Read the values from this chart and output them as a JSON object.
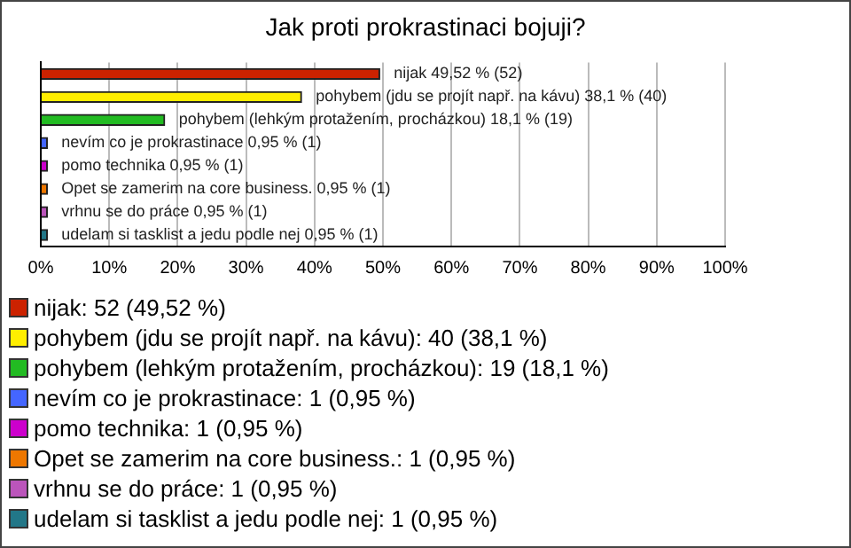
{
  "chart_data": {
    "type": "bar",
    "orientation": "horizontal",
    "title": "Jak proti prokrastinaci bojuji?",
    "categories": [
      null,
      null,
      null,
      null,
      null,
      null,
      null,
      null
    ],
    "series": [
      {
        "name": "nijak: 52 (49,52 %)",
        "color": "#cc2200",
        "values": [
          49.52,
          null,
          null,
          null,
          null,
          null,
          null,
          null
        ],
        "value_labels": [
          "nijak 49,52 % (52)",
          null,
          null,
          null,
          null,
          null,
          null,
          null
        ]
      },
      {
        "name": "pohybem (jdu se projít např. na kávu): 40 (38,1 %)",
        "color": "#ffee00",
        "values": [
          null,
          38.1,
          null,
          null,
          null,
          null,
          null,
          null
        ],
        "value_labels": [
          null,
          "pohybem (jdu se projít např. na kávu) 38,1 % (40)",
          null,
          null,
          null,
          null,
          null,
          null
        ]
      },
      {
        "name": "pohybem (lehkým protažením, procházkou): 19 (18,1 %)",
        "color": "#22bb22",
        "values": [
          null,
          null,
          18.1,
          null,
          null,
          null,
          null,
          null
        ],
        "value_labels": [
          null,
          null,
          "pohybem (lehkým protažením, procházkou) 18,1 % (19)",
          null,
          null,
          null,
          null,
          null
        ]
      },
      {
        "name": "nevím co je prokrastinace: 1 (0,95 %)",
        "color": "#4466ff",
        "values": [
          null,
          null,
          null,
          0.95,
          null,
          null,
          null,
          null
        ],
        "value_labels": [
          null,
          null,
          null,
          "nevím co je prokrastinace 0,95 % (1)",
          null,
          null,
          null,
          null
        ]
      },
      {
        "name": "pomo technika: 1 (0,95 %)",
        "color": "#cc00cc",
        "values": [
          null,
          null,
          null,
          null,
          0.95,
          null,
          null,
          null
        ],
        "value_labels": [
          null,
          null,
          null,
          null,
          "pomo technika 0,95 % (1)",
          null,
          null,
          null
        ]
      },
      {
        "name": "Opet se zamerim na core business.: 1 (0,95 %)",
        "color": "#ee7700",
        "values": [
          null,
          null,
          null,
          null,
          null,
          0.95,
          null,
          null
        ],
        "value_labels": [
          null,
          null,
          null,
          null,
          null,
          "Opet se zamerim na core business. 0,95 % (1)",
          null,
          null
        ]
      },
      {
        "name": "vrhnu se do práce: 1 (0,95 %)",
        "color": "#bb55bb",
        "values": [
          null,
          null,
          null,
          null,
          null,
          null,
          0.95,
          null
        ],
        "value_labels": [
          null,
          null,
          null,
          null,
          null,
          null,
          "vrhnu se do práce 0,95 % (1)",
          null
        ]
      },
      {
        "name": "udelam si tasklist a jedu podle nej: 1 (0,95 %)",
        "color": "#227788",
        "values": [
          null,
          null,
          null,
          null,
          null,
          null,
          null,
          0.95
        ],
        "value_labels": [
          null,
          null,
          null,
          null,
          null,
          null,
          null,
          "udelam si tasklist a jedu podle nej 0,95 % (1)"
        ]
      }
    ],
    "xlim": [
      0,
      100
    ],
    "xticks": [
      {
        "value": 0,
        "label": "0%"
      },
      {
        "value": 10,
        "label": "10%"
      },
      {
        "value": 20,
        "label": "20%"
      },
      {
        "value": 30,
        "label": "30%"
      },
      {
        "value": 40,
        "label": "40%"
      },
      {
        "value": 50,
        "label": "50%"
      },
      {
        "value": 60,
        "label": "60%"
      },
      {
        "value": 70,
        "label": "70%"
      },
      {
        "value": 80,
        "label": "80%"
      },
      {
        "value": 90,
        "label": "90%"
      },
      {
        "value": 100,
        "label": "100%"
      }
    ],
    "grid": "x",
    "legend": "bottom"
  }
}
